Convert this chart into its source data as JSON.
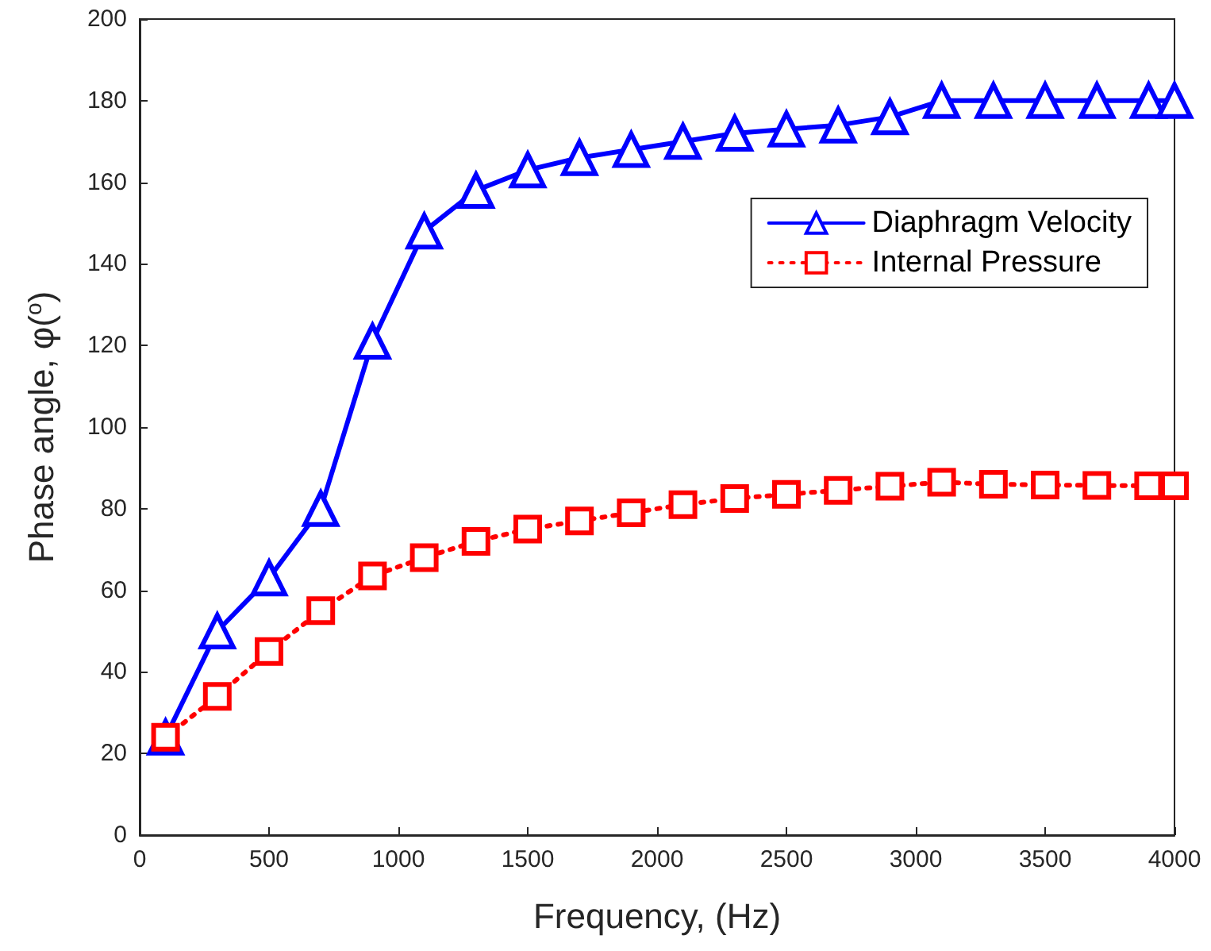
{
  "chart_data": {
    "type": "line",
    "xlabel": "Frequency, (Hz)",
    "ylabel": "Phase angle, φ($^{o}$)",
    "x": [
      100,
      300,
      500,
      700,
      900,
      1100,
      1300,
      1500,
      1700,
      1900,
      2100,
      2300,
      2500,
      2700,
      2900,
      3100,
      3300,
      3500,
      3700,
      3900,
      4000
    ],
    "series": [
      {
        "name": "Diaphragm Velocity",
        "color": "#0000ff",
        "marker": "triangle",
        "line_style": "solid",
        "values": [
          24,
          50,
          63,
          80,
          121,
          148,
          158,
          163,
          166,
          168,
          170,
          172,
          173,
          174,
          176,
          180,
          180,
          180,
          180,
          180,
          180
        ]
      },
      {
        "name": "Internal Pressure",
        "color": "#ff0000",
        "marker": "square",
        "line_style": "dotted",
        "values": [
          24,
          34,
          45,
          55,
          63.5,
          68,
          72,
          75,
          77,
          79,
          81,
          82.5,
          83.5,
          84.5,
          85.5,
          86.5,
          86,
          85.8,
          85.7,
          85.6,
          85.6
        ]
      }
    ],
    "xlim": [
      0,
      4000
    ],
    "xticks": [
      0,
      500,
      1000,
      1500,
      2000,
      2500,
      3000,
      3500,
      4000
    ],
    "ylim": [
      0,
      200
    ],
    "yticks": [
      0,
      20,
      40,
      60,
      80,
      100,
      120,
      140,
      160,
      180,
      200
    ],
    "grid": false,
    "legend": "top right"
  }
}
